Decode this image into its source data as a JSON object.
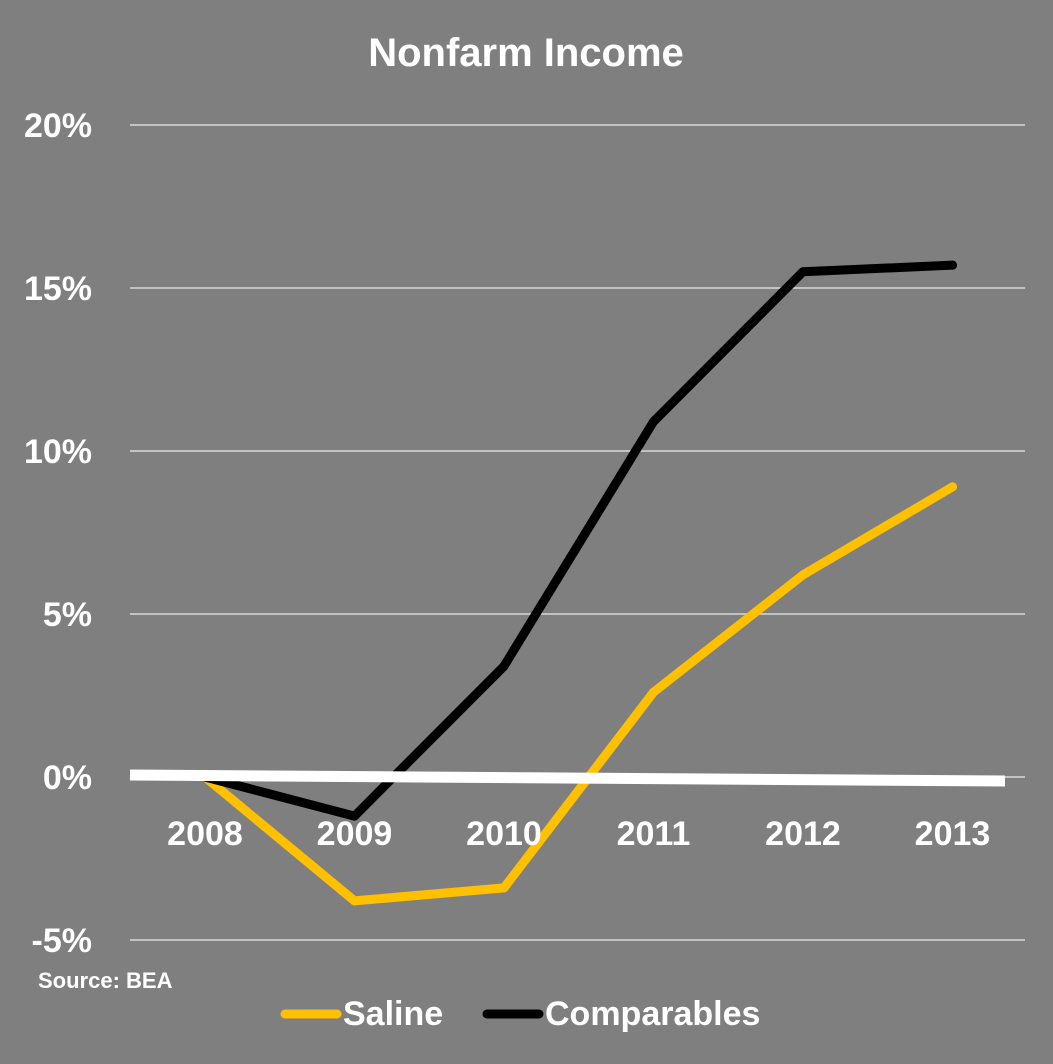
{
  "chart_data": {
    "type": "line",
    "title": "Nonfarm Income",
    "categories": [
      "2008",
      "2009",
      "2010",
      "2011",
      "2012",
      "2013"
    ],
    "series": [
      {
        "name": "Saline",
        "color": "#ffc000",
        "values": [
          0.0,
          -3.8,
          -3.4,
          2.6,
          6.2,
          8.9
        ]
      },
      {
        "name": "Comparables",
        "color": "#000000",
        "values": [
          0.0,
          -1.2,
          3.4,
          10.9,
          15.5,
          15.7
        ]
      }
    ],
    "ylim": [
      -5,
      20
    ],
    "yticks": [
      20,
      15,
      10,
      5,
      0,
      -5
    ],
    "ytick_labels": [
      "20%",
      "15%",
      "10%",
      "5%",
      "0%",
      "-5%"
    ],
    "grid": true,
    "legend_position": "bottom",
    "source_note": "Source: BEA",
    "background": "#7f7f7f",
    "gridline_color": "#d9d9d9",
    "axis_line_color": "#ffffff"
  }
}
